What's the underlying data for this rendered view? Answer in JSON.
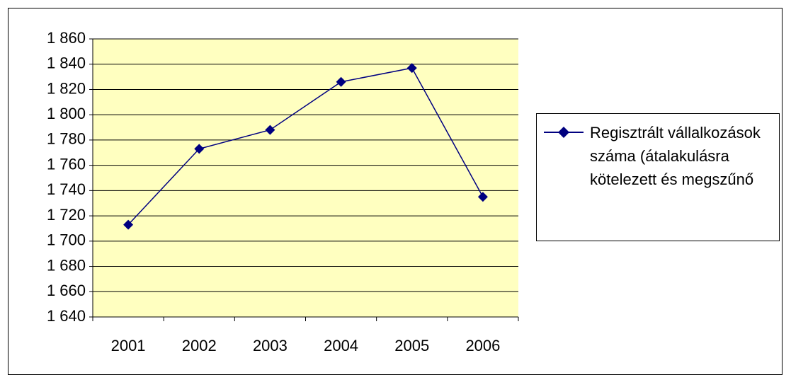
{
  "chart_data": {
    "type": "line",
    "categories": [
      "2001",
      "2002",
      "2003",
      "2004",
      "2005",
      "2006"
    ],
    "series": [
      {
        "name": "Regisztrált vállalkozások száma (átalakulásra kötelezett és megszűnő",
        "color": "#000080",
        "values": [
          1713,
          1773,
          1788,
          1826,
          1837,
          1735
        ]
      }
    ],
    "ylim": [
      1640,
      1860
    ],
    "yticks": [
      {
        "value": 1640,
        "label": "1 640"
      },
      {
        "value": 1660,
        "label": "1 660"
      },
      {
        "value": 1680,
        "label": "1 680"
      },
      {
        "value": 1700,
        "label": "1 700"
      },
      {
        "value": 1720,
        "label": "1 720"
      },
      {
        "value": 1740,
        "label": "1 740"
      },
      {
        "value": 1760,
        "label": "1 760"
      },
      {
        "value": 1780,
        "label": "1 780"
      },
      {
        "value": 1800,
        "label": "1 800"
      },
      {
        "value": 1820,
        "label": "1 820"
      },
      {
        "value": 1840,
        "label": "1 840"
      },
      {
        "value": 1860,
        "label": "1 860"
      }
    ],
    "grid": true,
    "plot_background": "#ffffc0",
    "legend": "right"
  }
}
